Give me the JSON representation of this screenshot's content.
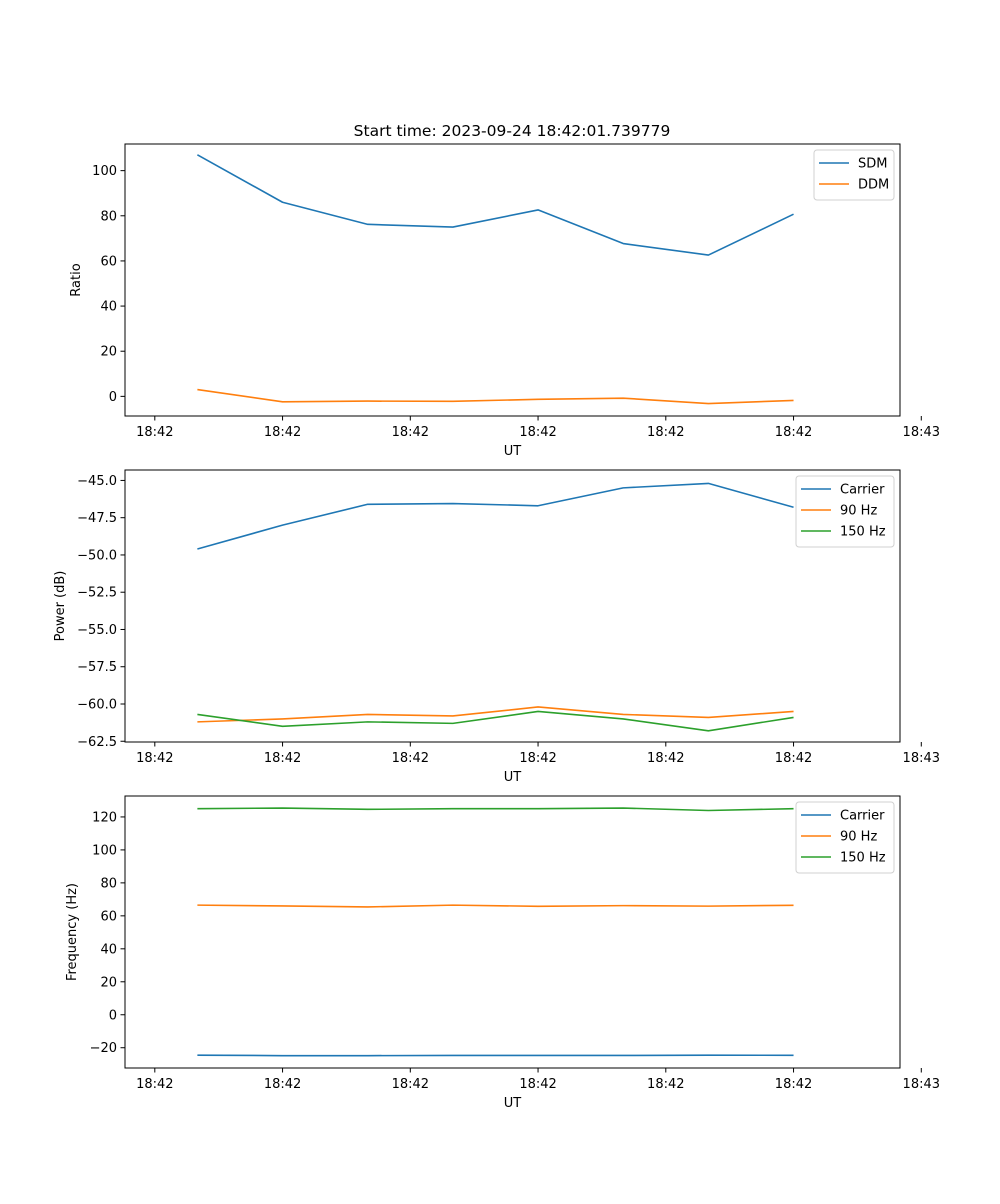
{
  "figure": {
    "title": "Start time: 2023-09-24 18:42:01.739779"
  },
  "chart_data": [
    {
      "type": "line",
      "title": "Start time: 2023-09-24 18:42:01.739779",
      "xlabel": "UT",
      "ylabel": "Ratio",
      "x": [
        1,
        2,
        3,
        4,
        5,
        6,
        7,
        8
      ],
      "xlim": [
        0.15,
        9.25
      ],
      "x_ticks": [
        0.5,
        2,
        3.5,
        5,
        6.5,
        8,
        9.5
      ],
      "x_tick_labels": [
        "18:42",
        "18:42",
        "18:42",
        "18:42",
        "18:42",
        "18:42",
        "18:43"
      ],
      "ylim": [
        -8.7,
        111.8
      ],
      "y_ticks": [
        0,
        20,
        40,
        60,
        80,
        100
      ],
      "y_tick_labels": [
        "0",
        "20",
        "40",
        "60",
        "80",
        "100"
      ],
      "legend_position": "top-right",
      "series": [
        {
          "name": "SDM",
          "color": "#1f77b4",
          "values": [
            107.0,
            86.0,
            76.2,
            75.0,
            82.6,
            67.7,
            62.6,
            80.7
          ]
        },
        {
          "name": "DDM",
          "color": "#ff7f0e",
          "values": [
            3.0,
            -2.4,
            -2.1,
            -2.2,
            -1.3,
            -0.8,
            -3.2,
            -1.8
          ]
        }
      ]
    },
    {
      "type": "line",
      "title": "",
      "xlabel": "UT",
      "ylabel": "Power (dB)",
      "x": [
        1,
        2,
        3,
        4,
        5,
        6,
        7,
        8
      ],
      "xlim": [
        0.15,
        9.25
      ],
      "x_ticks": [
        0.5,
        2,
        3.5,
        5,
        6.5,
        8,
        9.5
      ],
      "x_tick_labels": [
        "18:42",
        "18:42",
        "18:42",
        "18:42",
        "18:42",
        "18:42",
        "18:43"
      ],
      "ylim": [
        -62.55,
        -44.3
      ],
      "y_ticks": [
        -45.0,
        -47.5,
        -50.0,
        -52.5,
        -55.0,
        -57.5,
        -60.0,
        -62.5
      ],
      "y_tick_labels": [
        "−45.0",
        "−47.5",
        "−50.0",
        "−52.5",
        "−55.0",
        "−57.5",
        "−60.0",
        "−62.5"
      ],
      "legend_position": "top-right",
      "series": [
        {
          "name": "Carrier",
          "color": "#1f77b4",
          "values": [
            -49.6,
            -48.0,
            -46.6,
            -46.55,
            -46.7,
            -45.5,
            -45.2,
            -46.8
          ]
        },
        {
          "name": "90 Hz",
          "color": "#ff7f0e",
          "values": [
            -61.2,
            -61.0,
            -60.7,
            -60.8,
            -60.2,
            -60.7,
            -60.9,
            -60.5
          ]
        },
        {
          "name": "150 Hz",
          "color": "#2ca02c",
          "values": [
            -60.7,
            -61.5,
            -61.2,
            -61.3,
            -60.5,
            -61.0,
            -61.8,
            -60.9
          ]
        }
      ]
    },
    {
      "type": "line",
      "title": "",
      "xlabel": "UT",
      "ylabel": "Frequency (Hz)",
      "x": [
        1,
        2,
        3,
        4,
        5,
        6,
        7,
        8
      ],
      "xlim": [
        0.15,
        9.25
      ],
      "x_ticks": [
        0.5,
        2,
        3.5,
        5,
        6.5,
        8,
        9.5
      ],
      "x_tick_labels": [
        "18:42",
        "18:42",
        "18:42",
        "18:42",
        "18:42",
        "18:42",
        "18:43"
      ],
      "ylim": [
        -32.3,
        132.7
      ],
      "y_ticks": [
        -20,
        0,
        20,
        40,
        60,
        80,
        100,
        120
      ],
      "y_tick_labels": [
        "−20",
        "0",
        "20",
        "40",
        "60",
        "80",
        "100",
        "120"
      ],
      "legend_position": "top-right",
      "series": [
        {
          "name": "Carrier",
          "color": "#1f77b4",
          "values": [
            -24.5,
            -24.8,
            -24.8,
            -24.7,
            -24.7,
            -24.7,
            -24.5,
            -24.6
          ]
        },
        {
          "name": "90 Hz",
          "color": "#ff7f0e",
          "values": [
            66.5,
            66.0,
            65.4,
            66.5,
            65.8,
            66.2,
            65.9,
            66.4
          ]
        },
        {
          "name": "150 Hz",
          "color": "#2ca02c",
          "values": [
            125.0,
            125.4,
            124.6,
            125.0,
            125.0,
            125.4,
            123.9,
            125.0
          ]
        }
      ]
    }
  ]
}
